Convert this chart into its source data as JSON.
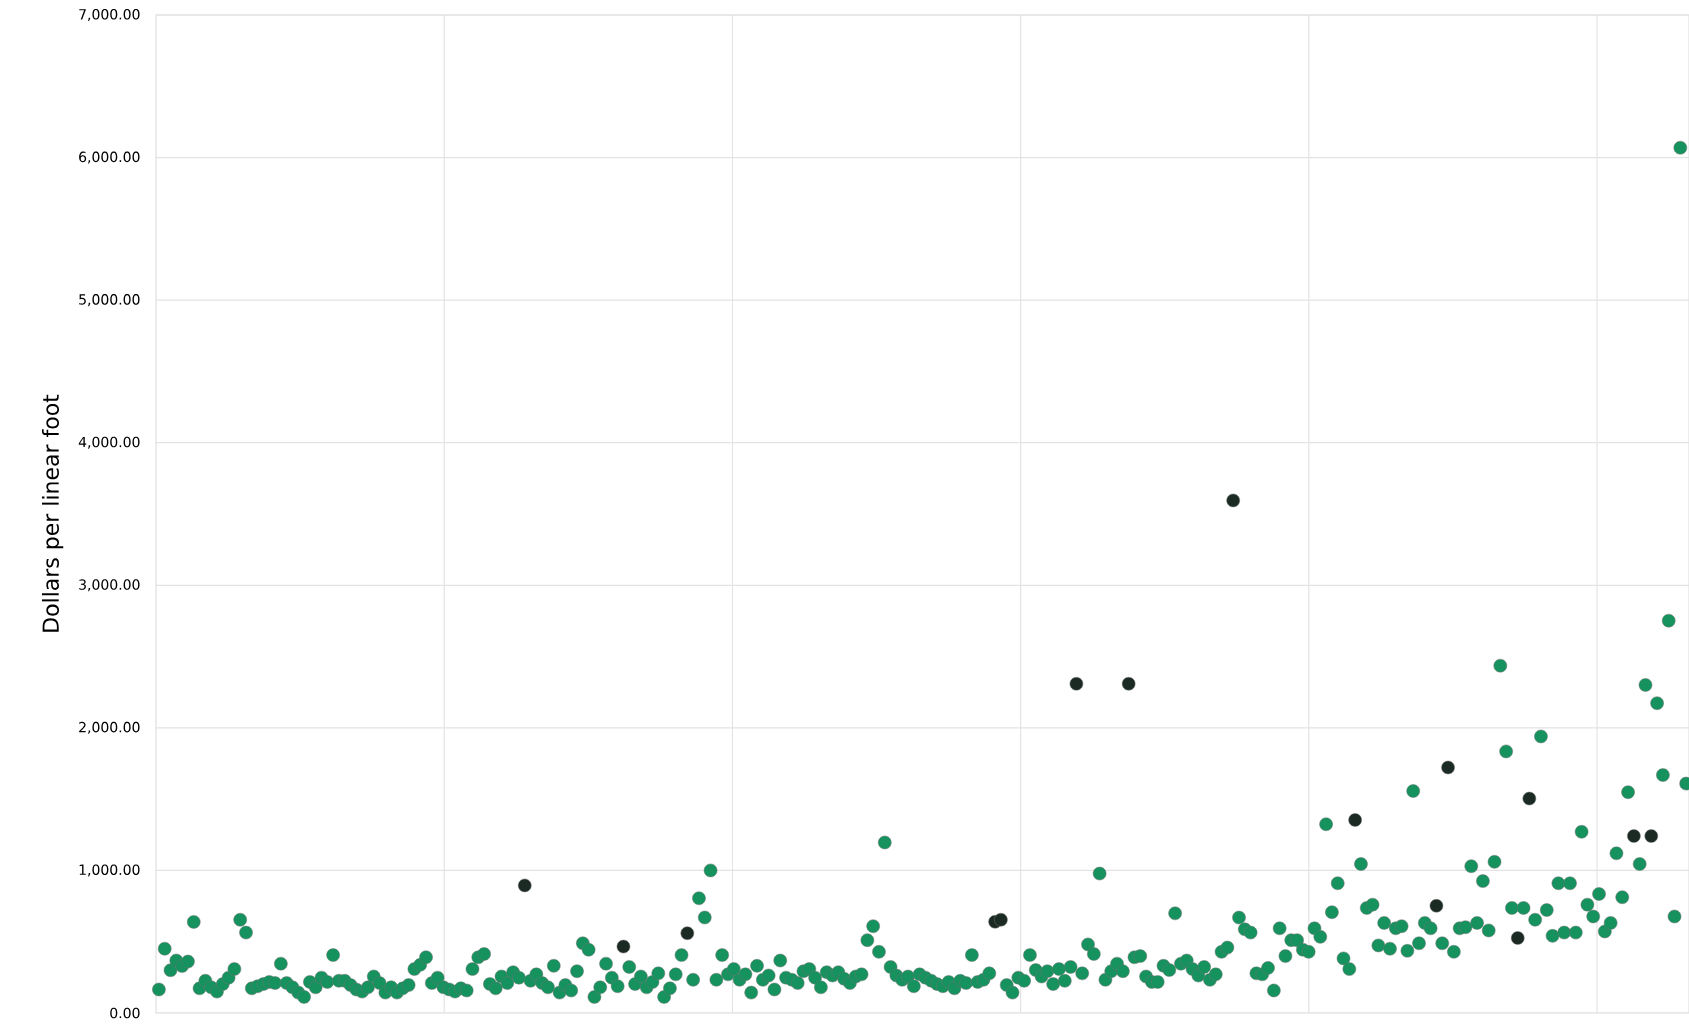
{
  "chart_data": {
    "type": "scatter",
    "ylabel": "Dollars per linear foot",
    "categories": [
      null,
      null,
      null,
      null,
      null,
      null,
      null,
      null,
      null,
      null,
      null,
      null,
      null,
      null,
      null,
      null,
      null,
      null,
      null,
      null,
      null,
      null,
      null,
      null,
      null,
      null,
      null,
      null,
      null,
      null,
      null,
      null,
      null,
      null,
      null,
      null,
      null,
      null,
      null,
      null,
      null,
      null,
      null,
      null,
      null,
      null,
      null,
      null,
      null,
      null,
      null,
      null,
      null,
      null,
      null,
      null,
      null,
      null,
      null,
      null,
      null,
      null,
      null,
      null,
      null,
      null,
      null,
      null,
      null,
      null,
      null,
      null,
      null,
      null,
      null,
      null,
      null,
      null,
      null,
      null,
      null,
      null,
      null,
      null,
      null,
      null,
      null,
      null,
      null,
      null,
      null,
      null,
      null,
      null,
      null,
      null,
      null,
      null,
      null,
      null,
      null,
      null,
      null,
      null,
      null,
      null,
      null,
      null,
      null,
      null,
      null,
      null,
      null,
      null,
      null,
      null,
      null,
      null,
      null,
      null,
      null,
      null,
      null,
      null,
      null,
      null,
      null,
      null,
      null,
      null,
      null,
      null,
      null,
      null,
      null,
      null,
      null,
      null,
      null,
      null,
      null,
      null,
      null,
      null,
      null,
      null,
      null,
      null,
      null,
      null,
      null,
      null,
      null,
      null,
      null,
      null,
      null,
      null,
      null,
      null,
      null,
      null,
      null,
      null,
      null,
      null,
      null,
      null,
      null,
      null,
      null,
      null,
      null,
      null,
      null,
      null,
      null,
      null,
      null,
      null,
      null,
      null,
      null,
      null,
      null,
      null,
      null,
      null,
      null,
      null,
      null,
      null,
      null,
      null,
      null,
      null,
      null,
      null,
      null,
      null,
      null,
      null,
      null,
      null,
      null,
      null,
      null,
      null,
      null,
      null,
      null,
      null,
      null,
      null,
      null,
      null,
      null,
      null,
      null,
      null,
      null,
      null,
      null,
      null,
      null,
      null,
      null,
      null,
      null,
      null,
      null,
      null,
      null,
      null,
      null,
      null,
      null,
      null,
      null,
      null,
      null,
      null,
      null,
      null,
      null,
      null,
      null,
      null,
      null,
      null,
      null,
      null,
      null,
      null,
      null,
      null,
      null,
      null,
      null,
      null,
      null,
      null,
      null,
      null
    ],
    "ylim": [
      0,
      7000
    ],
    "yticks": [
      {
        "value": 0,
        "label": "0.00"
      },
      {
        "value": 1000,
        "label": "1,000.00"
      },
      {
        "value": 2000,
        "label": "2,000.00"
      },
      {
        "value": 3000,
        "label": "3,000.00"
      },
      {
        "value": 4000,
        "label": "4,000.00"
      },
      {
        "value": 5000,
        "label": "5,000.00"
      },
      {
        "value": 6000,
        "label": "6,000.00"
      },
      {
        "value": 7000,
        "label": "7,000.00"
      }
    ],
    "grid": true,
    "marker": "circle",
    "series": [
      {
        "color": "#15925e",
        "values": [
          165,
          451,
          300,
          368,
          330,
          361,
          639,
          173,
          226,
          180,
          150,
          203,
          248,
          308,
          654,
          564,
          173,
          188,
          203,
          218,
          210,
          346,
          210,
          180,
          143,
          113,
          218,
          180,
          248,
          218,
          406,
          226,
          226,
          196,
          165,
          150,
          180,
          256,
          210,
          143,
          180,
          143,
          173,
          196,
          308,
          338,
          391,
          210,
          248,
          180,
          165,
          150,
          173,
          158,
          308,
          391,
          414,
          203,
          173,
          256,
          210,
          286,
          248,
          null,
          226,
          271,
          210,
          180,
          331,
          143,
          196,
          158,
          293,
          489,
          444,
          113,
          180,
          346,
          248,
          188,
          null,
          323,
          203,
          256,
          180,
          218,
          278,
          113,
          173,
          271,
          406,
          null,
          233,
          805,
          670,
          1000,
          233,
          406,
          271,
          308,
          233,
          271,
          143,
          331,
          233,
          263,
          165,
          368,
          248,
          233,
          210,
          293,
          308,
          248,
          180,
          286,
          263,
          286,
          240,
          210,
          256,
          271,
          511,
          609,
          429,
          1196,
          323,
          263,
          233,
          256,
          188,
          271,
          248,
          226,
          203,
          188,
          218,
          173,
          226,
          210,
          406,
          218,
          233,
          278,
          null,
          null,
          196,
          143,
          248,
          226,
          406,
          301,
          256,
          293,
          203,
          308,
          226,
          323,
          null,
          278,
          481,
          414,
          978,
          233,
          293,
          346,
          293,
          null,
          391,
          399,
          256,
          218,
          218,
          331,
          301,
          699,
          346,
          368,
          308,
          263,
          323,
          233,
          271,
          429,
          459,
          null,
          669,
          587,
          564,
          278,
          271,
          316,
          158,
          594,
          399,
          511,
          511,
          444,
          429,
          594,
          534,
          1324,
          707,
          910,
          383,
          308,
          null,
          1045,
          737,
          760,
          474,
          632,
          451,
          594,
          609,
          436,
          1557,
          489,
          632,
          594,
          null,
          489,
          null,
          429,
          594,
          602,
          1030,
          632,
          925,
          579,
          1060,
          2436,
          1835,
          737,
          null,
          737,
          null,
          654,
          1940,
          722,
          541,
          910,
          564,
          910,
          564,
          1271,
          760,
          677,
          835,
          572,
          632,
          1120,
          812,
          1549,
          null,
          1045,
          2301,
          null,
          2173,
          1669,
          2752,
          677,
          6069,
          1609
        ]
      },
      {
        "color": "#1b2b24",
        "values": [
          null,
          null,
          null,
          null,
          null,
          null,
          null,
          null,
          null,
          null,
          null,
          null,
          null,
          null,
          null,
          null,
          null,
          null,
          null,
          null,
          null,
          null,
          null,
          null,
          null,
          null,
          null,
          null,
          null,
          null,
          null,
          null,
          null,
          null,
          null,
          null,
          null,
          null,
          null,
          null,
          null,
          null,
          null,
          null,
          null,
          null,
          null,
          null,
          null,
          null,
          null,
          null,
          null,
          null,
          null,
          null,
          null,
          null,
          null,
          null,
          null,
          null,
          null,
          895,
          null,
          null,
          null,
          null,
          null,
          null,
          null,
          null,
          null,
          null,
          null,
          null,
          null,
          null,
          null,
          null,
          466,
          null,
          null,
          null,
          null,
          null,
          null,
          null,
          null,
          null,
          null,
          560,
          null,
          null,
          null,
          null,
          null,
          null,
          null,
          null,
          null,
          null,
          null,
          null,
          null,
          null,
          null,
          null,
          null,
          null,
          null,
          null,
          null,
          null,
          null,
          null,
          null,
          null,
          null,
          null,
          null,
          null,
          null,
          null,
          null,
          null,
          null,
          null,
          null,
          null,
          null,
          null,
          null,
          null,
          null,
          null,
          null,
          null,
          null,
          null,
          null,
          null,
          null,
          null,
          640,
          654,
          null,
          null,
          null,
          null,
          null,
          null,
          null,
          null,
          null,
          null,
          null,
          null,
          2309,
          null,
          null,
          null,
          null,
          null,
          null,
          null,
          null,
          2309,
          null,
          null,
          null,
          null,
          null,
          null,
          null,
          null,
          null,
          null,
          null,
          null,
          null,
          null,
          null,
          null,
          null,
          3595,
          null,
          null,
          null,
          null,
          null,
          null,
          null,
          null,
          null,
          null,
          null,
          null,
          null,
          null,
          null,
          null,
          null,
          null,
          null,
          null,
          1354,
          null,
          null,
          null,
          null,
          null,
          null,
          null,
          null,
          null,
          null,
          null,
          null,
          null,
          752,
          null,
          1722,
          null,
          null,
          null,
          null,
          null,
          null,
          null,
          null,
          null,
          null,
          null,
          526,
          null,
          1504,
          null,
          null,
          null,
          null,
          null,
          null,
          null,
          null,
          null,
          null,
          null,
          null,
          null,
          null,
          null,
          null,
          null,
          1241,
          null,
          null,
          1241,
          null,
          null,
          null,
          null,
          null,
          null
        ]
      }
    ]
  }
}
